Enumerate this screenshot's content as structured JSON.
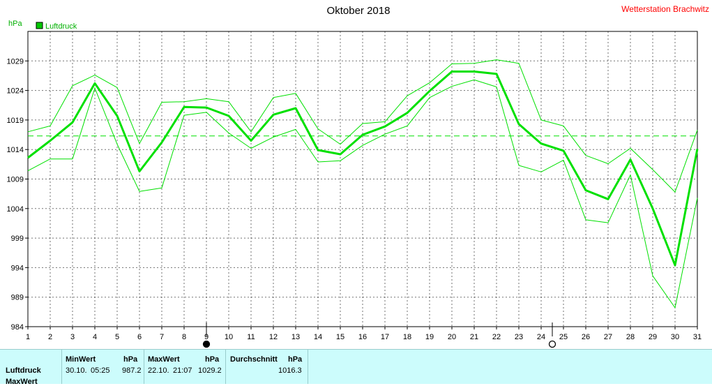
{
  "header": {
    "title": "Oktober 2018",
    "station": "Wetterstation Brachwitz",
    "unit": "hPa"
  },
  "chart_data": {
    "type": "line",
    "title": "Oktober 2018",
    "ylabel": "hPa",
    "ylim": [
      984,
      1034
    ],
    "yticks": [
      984,
      989,
      994,
      999,
      1004,
      1009,
      1014,
      1019,
      1024,
      1029
    ],
    "x": [
      1,
      2,
      3,
      4,
      5,
      6,
      7,
      8,
      9,
      10,
      11,
      12,
      13,
      14,
      15,
      16,
      17,
      18,
      19,
      20,
      21,
      22,
      23,
      24,
      25,
      26,
      27,
      28,
      29,
      30,
      31
    ],
    "legend": [
      {
        "name": "Luftdruck",
        "color": "#00c800"
      }
    ],
    "series": [
      {
        "name": "Luftdruck",
        "role": "mean",
        "color": "#00e000",
        "values": [
          1012.6,
          1015.5,
          1018.6,
          1025.2,
          1019.7,
          1010.3,
          1015.2,
          1021.2,
          1021.1,
          1019.7,
          1015.5,
          1019.9,
          1021.0,
          1013.9,
          1013.2,
          1016.5,
          1017.9,
          1020.2,
          1023.9,
          1027.2,
          1027.2,
          1026.8,
          1018.3,
          1015.0,
          1013.8,
          1007.1,
          1005.6,
          1012.3,
          1004.0,
          994.4,
          1014.1
        ]
      },
      {
        "role": "max",
        "color": "#00e000",
        "values": [
          1017.0,
          1018.0,
          1024.8,
          1026.6,
          1024.5,
          1015.0,
          1022.0,
          1022.1,
          1022.6,
          1022.1,
          1017.0,
          1022.8,
          1023.5,
          1017.5,
          1014.9,
          1018.4,
          1018.7,
          1023.1,
          1025.3,
          1028.5,
          1028.6,
          1029.2,
          1028.6,
          1019.0,
          1018.0,
          1013.0,
          1011.6,
          1014.2,
          1010.6,
          1006.8,
          1017.3
        ]
      },
      {
        "role": "min",
        "color": "#00e000",
        "values": [
          1010.4,
          1012.4,
          1012.4,
          1024.4,
          1014.9,
          1006.9,
          1007.5,
          1019.8,
          1020.3,
          1016.8,
          1014.2,
          1016.1,
          1017.4,
          1011.9,
          1012.1,
          1014.7,
          1016.6,
          1018.0,
          1022.8,
          1024.7,
          1025.8,
          1024.6,
          1011.3,
          1010.2,
          1012.2,
          1002.1,
          1001.6,
          1009.7,
          992.6,
          987.2,
          1005.8
        ]
      }
    ],
    "average": {
      "value": 1016.3,
      "color": "#00e000",
      "style": "dashed"
    },
    "moon_markers": [
      {
        "day": 9,
        "phase": "new-moon"
      },
      {
        "day": 24.5,
        "phase": "full-moon"
      }
    ],
    "grid": true
  },
  "stats": {
    "row_labels": [
      "Luftdruck",
      "MaxWert"
    ],
    "min": {
      "label": "MinWert",
      "unit": "hPa",
      "date": "30.10.",
      "time": "05:25",
      "value": "987.2"
    },
    "max": {
      "label": "MaxWert",
      "unit": "hPa",
      "date": "22.10.",
      "time": "21:07",
      "value": "1029.2"
    },
    "avg": {
      "label": "Durchschnitt",
      "unit": "hPa",
      "value": "1016.3"
    }
  }
}
